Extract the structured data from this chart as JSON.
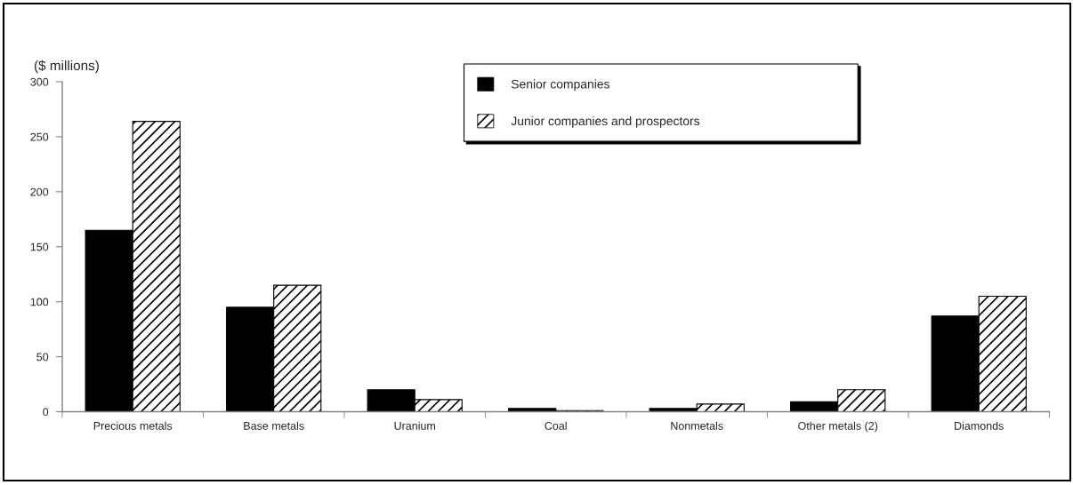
{
  "chart_data": {
    "type": "bar",
    "ylabel": "($ millions)",
    "categories": [
      "Precious metals",
      "Base metals",
      "Uranium",
      "Coal",
      "Nonmetals",
      "Other metals (2)",
      "Diamonds"
    ],
    "series": [
      {
        "name": "Senior companies",
        "color": "#000000",
        "values": [
          165,
          95,
          20,
          3,
          3,
          9,
          87
        ]
      },
      {
        "name": "Junior companies and prospectors",
        "color": "#000000",
        "values": [
          264,
          115,
          11,
          1,
          7,
          20,
          105
        ]
      }
    ],
    "ylim": [
      0,
      300
    ],
    "yticks": [
      0,
      50,
      100,
      150,
      200,
      250,
      300
    ],
    "grid": false,
    "legend": "top"
  }
}
